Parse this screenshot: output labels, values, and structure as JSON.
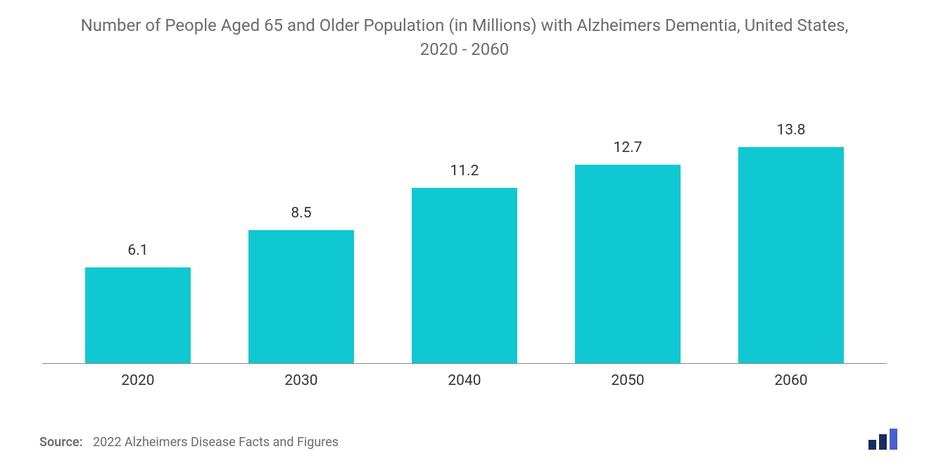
{
  "chart": {
    "type": "bar",
    "title": "Number of People Aged 65 and Older Population (in Millions) with Alzheimers Dementia, United States, 2020 - 2060",
    "title_fontsize": 24,
    "title_color": "#6b6b6b",
    "categories": [
      "2020",
      "2030",
      "2040",
      "2050",
      "2060"
    ],
    "values": [
      6.1,
      8.5,
      11.2,
      12.7,
      13.8
    ],
    "value_labels": [
      "6.1",
      "8.5",
      "11.2",
      "12.7",
      "13.8"
    ],
    "bar_color": "#10c8d2",
    "label_color": "#353535",
    "label_fontsize": 21,
    "axis_color": "#888888",
    "background_color": "#ffffff",
    "ymax": 15.5,
    "bar_width_pct": 72
  },
  "source": {
    "label": "Source:",
    "text": "2022 Alzheimers Disease Facts and Figures",
    "color": "#6b6b6b",
    "fontsize": 18
  },
  "logo": {
    "bar1_color": "#1a2b5f",
    "bar2_color": "#1a2b5f",
    "bar3_color": "#4a5fd0"
  }
}
